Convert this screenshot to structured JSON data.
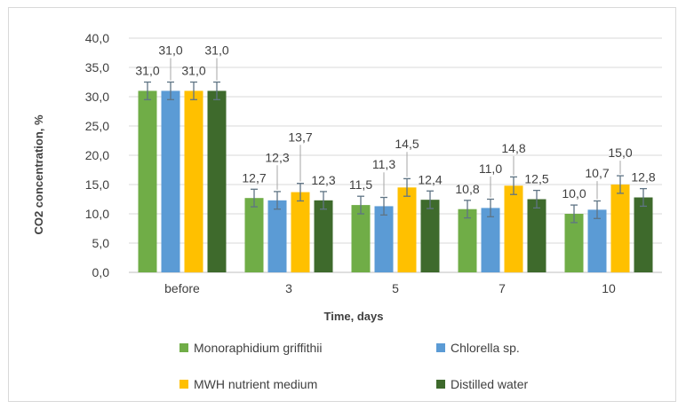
{
  "chart_data": {
    "type": "bar",
    "title": "",
    "xlabel": "Time, days",
    "ylabel": "CO2 concentration, %",
    "ylim": [
      0,
      40
    ],
    "yticks": [
      0,
      5,
      10,
      15,
      20,
      25,
      30,
      35,
      40
    ],
    "ytick_labels": [
      "0,0",
      "5,0",
      "10,0",
      "15,0",
      "20,0",
      "25,0",
      "30,0",
      "35,0",
      "40,0"
    ],
    "grid": true,
    "legend_position": "bottom",
    "error_bars": true,
    "error": 1.5,
    "categories": [
      "before",
      "3",
      "5",
      "7",
      "10"
    ],
    "series": [
      {
        "name": "Monoraphidium griffithii",
        "color": "#70ad47",
        "values": [
          31.0,
          12.7,
          11.5,
          10.8,
          10.0
        ],
        "labels": [
          "31,0",
          "12,7",
          "11,5",
          "10,8",
          "10,0"
        ]
      },
      {
        "name": "Chlorella sp.",
        "color": "#5b9bd5",
        "values": [
          31.0,
          12.3,
          11.3,
          11.0,
          10.7
        ],
        "labels": [
          "31,0",
          "12,3",
          "11,3",
          "11,0",
          "10,7"
        ]
      },
      {
        "name": "MWH nutrient medium",
        "color": "#ffc000",
        "values": [
          31.0,
          13.7,
          14.5,
          14.8,
          15.0
        ],
        "labels": [
          "31,0",
          "13,7",
          "14,5",
          "14,8",
          "15,0"
        ]
      },
      {
        "name": "Distilled water",
        "color": "#3e6a2c",
        "values": [
          31.0,
          12.3,
          12.4,
          12.5,
          12.8
        ],
        "labels": [
          "31,0",
          "12,3",
          "12,4",
          "12,5",
          "12,8"
        ]
      }
    ]
  }
}
